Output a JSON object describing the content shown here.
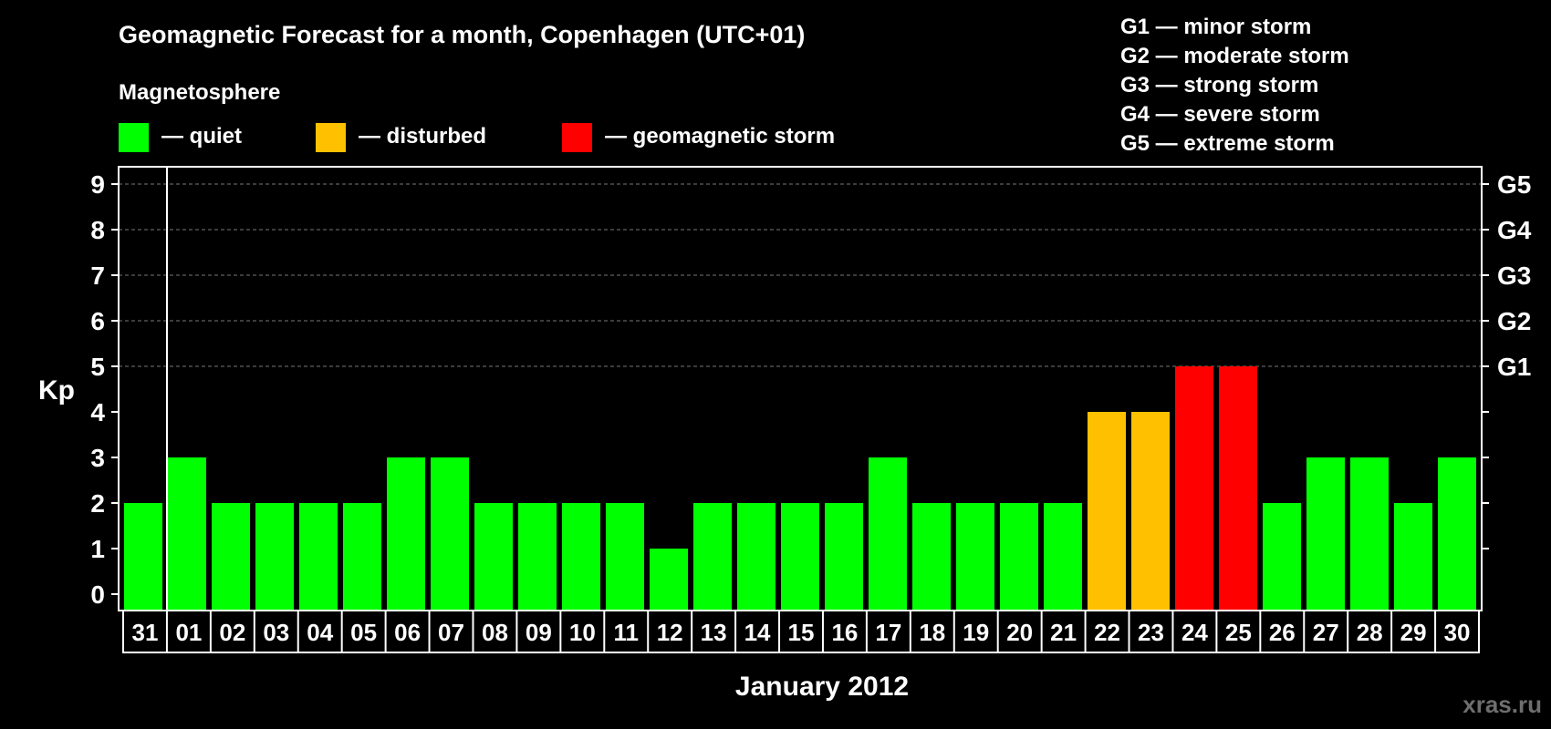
{
  "title": "Geomagnetic Forecast for a month, Copenhagen (UTC+01)",
  "legend": {
    "heading": "Magnetosphere",
    "items": [
      {
        "key": "quiet",
        "label": "— quiet",
        "color": "#00ff00"
      },
      {
        "key": "disturbed",
        "label": "— disturbed",
        "color": "#ffc000"
      },
      {
        "key": "storm",
        "label": "— geomagnetic storm",
        "color": "#ff0000"
      }
    ]
  },
  "storm_scale": [
    "G1 — minor storm",
    "G2 — moderate storm",
    "G3 — strong storm",
    "G4 — severe storm",
    "G5 — extreme storm"
  ],
  "watermark": "xras.ru",
  "colors": {
    "quiet": "#00ff00",
    "disturbed": "#ffc000",
    "storm": "#ff0000",
    "background": "#000000",
    "grid": "#777777"
  },
  "chart_data": {
    "type": "bar",
    "ylabel": "Kp",
    "xlabel": "January 2012",
    "ylim": [
      0,
      9
    ],
    "y_ticks": [
      0,
      1,
      2,
      3,
      4,
      5,
      6,
      7,
      8,
      9
    ],
    "right_axis_labels": [
      {
        "kp": 5,
        "label": "G1"
      },
      {
        "kp": 6,
        "label": "G2"
      },
      {
        "kp": 7,
        "label": "G3"
      },
      {
        "kp": 8,
        "label": "G4"
      },
      {
        "kp": 9,
        "label": "G5"
      }
    ],
    "grid": "dashed horizontal at Kp 5-9",
    "categories": [
      "31",
      "01",
      "02",
      "03",
      "04",
      "05",
      "06",
      "07",
      "08",
      "09",
      "10",
      "11",
      "12",
      "13",
      "14",
      "15",
      "16",
      "17",
      "18",
      "19",
      "20",
      "21",
      "22",
      "23",
      "24",
      "25",
      "26",
      "27",
      "28",
      "29",
      "30"
    ],
    "values": [
      2,
      3,
      2,
      2,
      2,
      2,
      3,
      3,
      2,
      2,
      2,
      2,
      1,
      2,
      2,
      2,
      2,
      3,
      2,
      2,
      2,
      2,
      4,
      4,
      5,
      5,
      2,
      3,
      3,
      2,
      3
    ],
    "status": [
      "quiet",
      "quiet",
      "quiet",
      "quiet",
      "quiet",
      "quiet",
      "quiet",
      "quiet",
      "quiet",
      "quiet",
      "quiet",
      "quiet",
      "quiet",
      "quiet",
      "quiet",
      "quiet",
      "quiet",
      "quiet",
      "quiet",
      "quiet",
      "quiet",
      "quiet",
      "disturbed",
      "disturbed",
      "storm",
      "storm",
      "quiet",
      "quiet",
      "quiet",
      "quiet",
      "quiet"
    ]
  }
}
